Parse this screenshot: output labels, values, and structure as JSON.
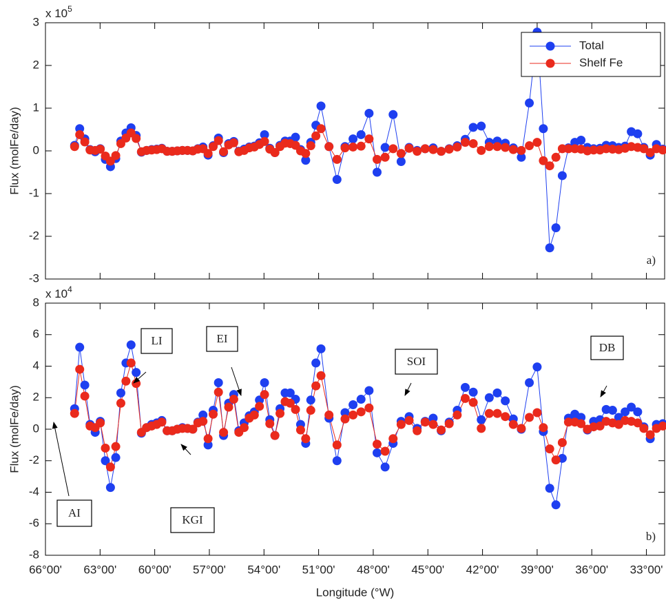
{
  "chart_data": [
    {
      "type": "line",
      "ylabel": "Flux (molFe/day)",
      "multiplier": "x 10",
      "multiplier_exponent": "5",
      "panel_label": "a)",
      "legend": "upper right",
      "x": [
        64.4,
        64.12,
        63.84,
        63.55,
        63.27,
        62.99,
        62.71,
        62.43,
        62.14,
        61.86,
        61.58,
        61.3,
        61.02,
        60.73,
        60.45,
        60.17,
        59.89,
        59.61,
        59.32,
        59.04,
        58.76,
        58.48,
        58.2,
        57.91,
        57.63,
        57.35,
        57.07,
        56.79,
        56.5,
        56.22,
        55.94,
        55.66,
        55.38,
        55.09,
        54.81,
        54.53,
        54.25,
        53.97,
        53.68,
        53.4,
        53.12,
        52.84,
        52.56,
        52.27,
        51.99,
        51.71,
        51.43,
        51.15,
        50.87,
        50.43,
        49.99,
        49.55,
        49.11,
        48.67,
        48.23,
        47.79,
        47.35,
        46.91,
        46.47,
        46.03,
        45.59,
        45.15,
        44.71,
        44.27,
        43.83,
        43.39,
        42.95,
        42.51,
        42.07,
        41.63,
        41.19,
        40.75,
        40.31,
        39.87,
        39.43,
        39.0,
        38.66,
        38.31,
        37.97,
        37.62,
        37.28,
        36.93,
        36.59,
        36.24,
        35.9,
        35.55,
        35.21,
        34.86,
        34.52,
        34.17,
        33.83,
        33.48,
        33.14,
        32.79,
        32.45,
        32.1
      ],
      "series": [
        {
          "name": "Total",
          "color": "#1e3ff0",
          "values": [
            0.13,
            0.52,
            0.28,
            0.03,
            -0.02,
            0.05,
            -0.2,
            -0.37,
            -0.18,
            0.23,
            0.42,
            0.54,
            0.36,
            -0.03,
            0.01,
            0.03,
            0.04,
            0.06,
            -0.01,
            -0.01,
            0,
            0.01,
            0.01,
            0,
            0.05,
            0.09,
            -0.1,
            0.12,
            0.3,
            -0.04,
            0.17,
            0.22,
            -0.01,
            0.04,
            0.09,
            0.11,
            0.19,
            0.38,
            0.06,
            -0.04,
            0.13,
            0.23,
            0.23,
            0.32,
            0.03,
            -0.22,
            0.2,
            0.6,
            1.05,
            0.1,
            -0.67,
            0.1,
            0.28,
            0.38,
            0.88,
            -0.5,
            0.08,
            0.85,
            -0.25,
            0.08,
            0.01,
            0.05,
            0.07,
            -0.01,
            0.05,
            0.12,
            0.27,
            0.55,
            0.58,
            0.2,
            0.23,
            0.18,
            0.07,
            -0.15,
            1.12,
            2.78,
            0.52,
            -2.27,
            -1.8,
            -0.58,
            0.07,
            0.2,
            0.25,
            0.08,
            0.05,
            0.06,
            0.13,
            0.12,
            0.08,
            0.11,
            0.45,
            0.4,
            0.08,
            -0.1,
            0.15,
            0.04
          ]
        },
        {
          "name": "Shelf Fe",
          "color": "#ea2a1c",
          "values": [
            0.1,
            0.38,
            0.21,
            0.02,
            0.01,
            0.04,
            -0.12,
            -0.24,
            -0.11,
            0.17,
            0.3,
            0.42,
            0.29,
            -0.02,
            0.01,
            0.02,
            0.03,
            0.05,
            -0.01,
            -0.01,
            0,
            0.01,
            0.01,
            0,
            0.04,
            0.05,
            -0.06,
            0.1,
            0.24,
            -0.02,
            0.14,
            0.19,
            -0.02,
            0.01,
            0.07,
            0.09,
            0.15,
            0.22,
            0.04,
            -0.04,
            0.1,
            0.18,
            0.17,
            0.13,
            0,
            -0.06,
            0.12,
            0.35,
            0.52,
            0.1,
            -0.2,
            0.07,
            0.09,
            0.11,
            0.28,
            -0.2,
            -0.15,
            0.05,
            -0.06,
            0.06,
            -0.01,
            0.05,
            0.03,
            -0.01,
            0.04,
            0.09,
            0.2,
            0.17,
            0.01,
            0.1,
            0.1,
            0.08,
            0.03,
            0.01,
            0.12,
            0.2,
            -0.23,
            -0.35,
            -0.15,
            0.05,
            0.05,
            0.05,
            0.04,
            0,
            0.02,
            0.02,
            0.05,
            0.04,
            0.03,
            0.06,
            0.1,
            0.08,
            0.05,
            -0.04,
            0.05,
            0.02
          ]
        }
      ],
      "xlim": [
        66,
        32
      ],
      "xticks": [
        66,
        63,
        60,
        57,
        54,
        51,
        48,
        45,
        42,
        39,
        36,
        33
      ],
      "ylim": [
        -3,
        3
      ],
      "yticks": [
        -3,
        -2,
        -1,
        0,
        1,
        2,
        3
      ]
    },
    {
      "type": "line",
      "ylabel": "Flux (molFe/day)",
      "xlabel": "Longitude (°W)",
      "multiplier": "x 10",
      "multiplier_exponent": "4",
      "panel_label": "b)",
      "x": [
        64.4,
        64.12,
        63.84,
        63.55,
        63.27,
        62.99,
        62.71,
        62.43,
        62.14,
        61.86,
        61.58,
        61.3,
        61.02,
        60.73,
        60.45,
        60.17,
        59.89,
        59.61,
        59.32,
        59.04,
        58.76,
        58.48,
        58.2,
        57.91,
        57.63,
        57.35,
        57.07,
        56.79,
        56.5,
        56.22,
        55.94,
        55.66,
        55.38,
        55.09,
        54.81,
        54.53,
        54.25,
        53.97,
        53.68,
        53.4,
        53.12,
        52.84,
        52.56,
        52.27,
        51.99,
        51.71,
        51.43,
        51.15,
        50.87,
        50.43,
        49.99,
        49.55,
        49.11,
        48.67,
        48.23,
        47.79,
        47.35,
        46.91,
        46.47,
        46.03,
        45.59,
        45.15,
        44.71,
        44.27,
        43.83,
        43.39,
        42.95,
        42.51,
        42.07,
        41.63,
        41.19,
        40.75,
        40.31,
        39.87,
        39.43,
        39.0,
        38.66,
        38.31,
        37.97,
        37.62,
        37.28,
        36.93,
        36.59,
        36.24,
        35.9,
        35.55,
        35.21,
        34.86,
        34.52,
        34.17,
        33.83,
        33.48,
        33.14,
        32.79,
        32.45,
        32.1
      ],
      "series": [
        {
          "color": "#1e3ff0",
          "values": [
            1.3,
            5.2,
            2.8,
            0.3,
            -0.2,
            0.5,
            -2.0,
            -3.7,
            -1.8,
            2.3,
            4.2,
            5.35,
            3.6,
            -0.25,
            0.1,
            0.3,
            0.4,
            0.55,
            -0.1,
            -0.1,
            0,
            0.1,
            0.05,
            0,
            0.45,
            0.9,
            -1.0,
            1.2,
            2.95,
            -0.4,
            1.65,
            2.2,
            -0.1,
            0.4,
            0.85,
            1.1,
            1.85,
            2.95,
            0.6,
            -0.4,
            1.3,
            2.3,
            2.3,
            1.9,
            0.3,
            -0.9,
            1.85,
            4.2,
            5.1,
            0.7,
            -2.0,
            1.05,
            1.55,
            1.9,
            2.45,
            -1.5,
            -2.4,
            -0.9,
            0.5,
            0.8,
            0.05,
            0.5,
            0.7,
            -0.1,
            0.45,
            1.2,
            2.65,
            2.35,
            0.6,
            2.0,
            2.3,
            1.8,
            0.65,
            0,
            2.95,
            3.95,
            -0.15,
            -3.75,
            -4.8,
            -1.85,
            0.7,
            0.95,
            0.75,
            -0.05,
            0.5,
            0.6,
            1.25,
            1.2,
            0.75,
            1.1,
            1.4,
            1.1,
            0.15,
            -0.6,
            0.3,
            0.35
          ]
        },
        {
          "color": "#ea2a1c",
          "values": [
            1.0,
            3.8,
            2.1,
            0.2,
            0.1,
            0.4,
            -1.2,
            -2.4,
            -1.1,
            1.65,
            3.05,
            4.2,
            2.9,
            -0.2,
            0.1,
            0.2,
            0.3,
            0.45,
            -0.1,
            -0.1,
            0,
            0.05,
            0.05,
            0,
            0.4,
            0.5,
            -0.6,
            0.95,
            2.35,
            -0.2,
            1.4,
            1.9,
            -0.2,
            0.1,
            0.7,
            0.9,
            1.45,
            2.2,
            0.35,
            -0.4,
            1.0,
            1.75,
            1.65,
            1.25,
            -0.05,
            -0.6,
            1.2,
            2.75,
            3.4,
            0.9,
            -1.0,
            0.65,
            0.9,
            1.1,
            1.35,
            -0.95,
            -1.4,
            -0.6,
            0.3,
            0.55,
            -0.1,
            0.45,
            0.3,
            -0.05,
            0.35,
            0.9,
            1.95,
            1.7,
            0.05,
            1.0,
            1.0,
            0.8,
            0.3,
            0.05,
            0.75,
            1.05,
            0.1,
            -1.25,
            -1.95,
            -0.85,
            0.45,
            0.45,
            0.35,
            0,
            0.15,
            0.2,
            0.5,
            0.4,
            0.3,
            0.55,
            0.5,
            0.4,
            0.05,
            -0.35,
            0.05,
            0.2
          ]
        }
      ],
      "annotations": [
        {
          "text": "AI"
        },
        {
          "text": "LI"
        },
        {
          "text": "EI"
        },
        {
          "text": "KGI"
        },
        {
          "text": "SOI"
        },
        {
          "text": "DB"
        }
      ],
      "xlim": [
        66,
        32
      ],
      "xticks": [
        {
          "value": 66,
          "label": "66°00'"
        },
        {
          "value": 63,
          "label": "63°00'"
        },
        {
          "value": 60,
          "label": "60°00'"
        },
        {
          "value": 57,
          "label": "57°00'"
        },
        {
          "value": 54,
          "label": "54°00'"
        },
        {
          "value": 51,
          "label": "51°00'"
        },
        {
          "value": 48,
          "label": "48°00'"
        },
        {
          "value": 45,
          "label": "45°00'"
        },
        {
          "value": 42,
          "label": "42°00'"
        },
        {
          "value": 39,
          "label": "39°00'"
        },
        {
          "value": 36,
          "label": "36°00'"
        },
        {
          "value": 33,
          "label": "33°00'"
        }
      ],
      "ylim": [
        -8,
        8
      ],
      "yticks": [
        -8,
        -6,
        -4,
        -2,
        0,
        2,
        4,
        6,
        8
      ]
    }
  ]
}
